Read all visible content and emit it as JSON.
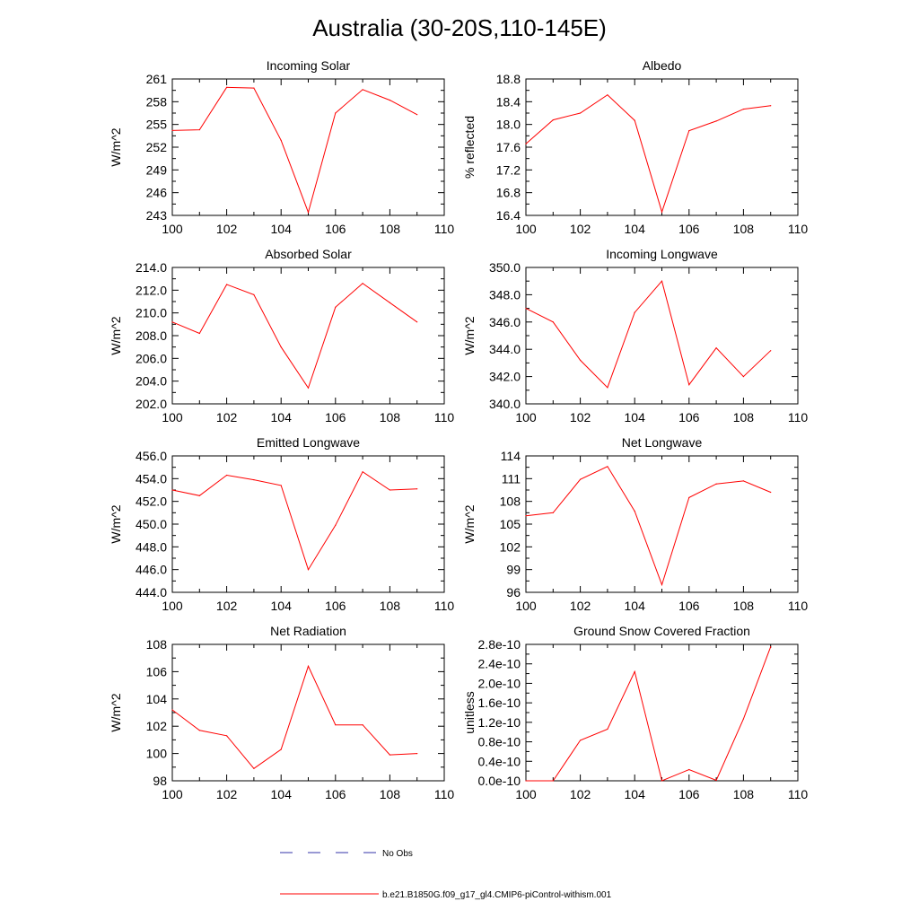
{
  "page": {
    "title": "Australia (30-20S,110-145E)"
  },
  "legend": [
    {
      "label": "No Obs",
      "color": "#3333aa",
      "style": "dashed"
    },
    {
      "label": "b.e21.B1850G.f09_g17_gl4.CMIP6-piControl-withism.001",
      "color": "#ff0000",
      "style": "solid"
    }
  ],
  "chart_data": [
    {
      "type": "line",
      "title": "Incoming Solar",
      "ylabel": "W/m^2",
      "xlabel": "",
      "xlim": [
        100,
        110
      ],
      "ylim": [
        243,
        261
      ],
      "xticks": [
        "100",
        "102",
        "104",
        "106",
        "108",
        "110"
      ],
      "yticks": [
        "243",
        "246",
        "249",
        "252",
        "255",
        "258",
        "261"
      ],
      "x": [
        100,
        101,
        102,
        103,
        104,
        105,
        106,
        107,
        108,
        109
      ],
      "series": [
        {
          "color": "#ff0000",
          "values": [
            254.2,
            254.3,
            259.9,
            259.8,
            252.9,
            243.4,
            256.5,
            259.6,
            258.2,
            256.3
          ]
        }
      ]
    },
    {
      "type": "line",
      "title": "Albedo",
      "ylabel": "% reflected",
      "xlabel": "",
      "xlim": [
        100,
        110
      ],
      "ylim": [
        16.4,
        18.8
      ],
      "xticks": [
        "100",
        "102",
        "104",
        "106",
        "108",
        "110"
      ],
      "yticks": [
        "16.4",
        "16.8",
        "17.2",
        "17.6",
        "18.0",
        "18.4",
        "18.8"
      ],
      "x": [
        100,
        101,
        102,
        103,
        104,
        105,
        106,
        107,
        108,
        109
      ],
      "series": [
        {
          "color": "#ff0000",
          "values": [
            17.66,
            18.08,
            18.2,
            18.52,
            18.07,
            16.46,
            17.89,
            18.06,
            18.27,
            18.33
          ]
        }
      ]
    },
    {
      "type": "line",
      "title": "Absorbed Solar",
      "ylabel": "W/m^2",
      "xlabel": "",
      "xlim": [
        100,
        110
      ],
      "ylim": [
        202.0,
        214.0
      ],
      "xticks": [
        "100",
        "102",
        "104",
        "106",
        "108",
        "110"
      ],
      "yticks": [
        "202.0",
        "204.0",
        "206.0",
        "208.0",
        "210.0",
        "212.0",
        "214.0"
      ],
      "x": [
        100,
        101,
        102,
        103,
        104,
        105,
        106,
        107,
        108,
        109
      ],
      "series": [
        {
          "color": "#ff0000",
          "values": [
            209.2,
            208.2,
            212.5,
            211.6,
            207.0,
            203.4,
            210.5,
            212.6,
            210.9,
            209.2
          ]
        }
      ]
    },
    {
      "type": "line",
      "title": "Incoming Longwave",
      "ylabel": "W/m^2",
      "xlabel": "",
      "xlim": [
        100,
        110
      ],
      "ylim": [
        340.0,
        350.0
      ],
      "xticks": [
        "100",
        "102",
        "104",
        "106",
        "108",
        "110"
      ],
      "yticks": [
        "340.0",
        "342.0",
        "344.0",
        "346.0",
        "348.0",
        "350.0"
      ],
      "x": [
        100,
        101,
        102,
        103,
        104,
        105,
        106,
        107,
        108,
        109
      ],
      "series": [
        {
          "color": "#ff0000",
          "values": [
            347.0,
            346.0,
            343.2,
            341.2,
            346.7,
            349.0,
            341.4,
            344.1,
            342.0,
            343.9
          ]
        }
      ]
    },
    {
      "type": "line",
      "title": "Emitted Longwave",
      "ylabel": "W/m^2",
      "xlabel": "",
      "xlim": [
        100,
        110
      ],
      "ylim": [
        444.0,
        456.0
      ],
      "xticks": [
        "100",
        "102",
        "104",
        "106",
        "108",
        "110"
      ],
      "yticks": [
        "444.0",
        "446.0",
        "448.0",
        "450.0",
        "452.0",
        "454.0",
        "456.0"
      ],
      "x": [
        100,
        101,
        102,
        103,
        104,
        105,
        106,
        107,
        108,
        109
      ],
      "series": [
        {
          "color": "#ff0000",
          "values": [
            453.0,
            452.5,
            454.3,
            453.9,
            453.4,
            446.0,
            449.9,
            454.6,
            453.0,
            453.1
          ]
        }
      ]
    },
    {
      "type": "line",
      "title": "Net Longwave",
      "ylabel": "W/m^2",
      "xlabel": "",
      "xlim": [
        100,
        110
      ],
      "ylim": [
        96,
        114
      ],
      "xticks": [
        "100",
        "102",
        "104",
        "106",
        "108",
        "110"
      ],
      "yticks": [
        "96",
        "99",
        "102",
        "105",
        "108",
        "111",
        "114"
      ],
      "x": [
        100,
        101,
        102,
        103,
        104,
        105,
        106,
        107,
        108,
        109
      ],
      "series": [
        {
          "color": "#ff0000",
          "values": [
            106.1,
            106.5,
            110.9,
            112.6,
            106.7,
            97.0,
            108.5,
            110.3,
            110.7,
            109.2
          ]
        }
      ]
    },
    {
      "type": "line",
      "title": "Net Radiation",
      "ylabel": "W/m^2",
      "xlabel": "",
      "xlim": [
        100,
        110
      ],
      "ylim": [
        98,
        108
      ],
      "xticks": [
        "100",
        "102",
        "104",
        "106",
        "108",
        "110"
      ],
      "yticks": [
        "98",
        "100",
        "102",
        "104",
        "106",
        "108"
      ],
      "x": [
        100,
        101,
        102,
        103,
        104,
        105,
        106,
        107,
        108,
        109
      ],
      "series": [
        {
          "color": "#ff0000",
          "values": [
            103.2,
            101.7,
            101.3,
            98.9,
            100.3,
            106.4,
            102.1,
            102.1,
            99.9,
            100.0
          ]
        }
      ]
    },
    {
      "type": "line",
      "title": "Ground Snow Covered Fraction",
      "ylabel": "unitless",
      "xlabel": "",
      "xlim": [
        100,
        110
      ],
      "ylim": [
        0.0,
        2.8e-10
      ],
      "xticks": [
        "100",
        "102",
        "104",
        "106",
        "108",
        "110"
      ],
      "yticks": [
        "0.0e-10",
        "0.4e-10",
        "0.8e-10",
        "1.2e-10",
        "1.6e-10",
        "2.0e-10",
        "2.4e-10",
        "2.8e-10"
      ],
      "x": [
        100,
        101,
        102,
        103,
        104,
        105,
        106,
        107,
        108,
        109
      ],
      "series": [
        {
          "color": "#ff0000",
          "values": [
            0.0,
            0.0,
            8.3e-11,
            1.06e-10,
            2.24e-10,
            0.0,
            2.3e-11,
            1e-12,
            1.27e-10,
            2.75e-10
          ]
        }
      ]
    }
  ]
}
